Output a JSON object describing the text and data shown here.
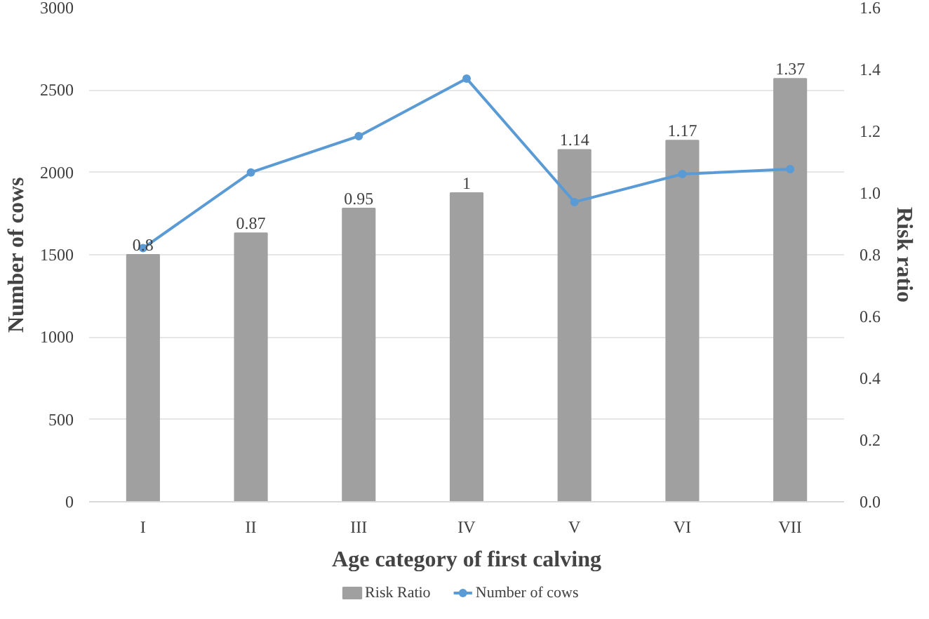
{
  "chart_data": {
    "type": "bar",
    "xlabel": "Age category of first calving",
    "ylabel": "Number of cows",
    "y2label": "Risk ratio",
    "categories": [
      "I",
      "II",
      "III",
      "IV",
      "V",
      "VI",
      "VII"
    ],
    "series": [
      {
        "name": "Risk Ratio",
        "axis": "y2",
        "color": "#a0a0a0",
        "values": [
          0.8,
          0.87,
          0.95,
          1,
          1.14,
          1.17,
          1.37
        ],
        "data_labels": true
      },
      {
        "name": "Number of cows",
        "type": "line",
        "color": "#5b9bd5",
        "marker": "circle",
        "values": [
          1540,
          2000,
          2220,
          2570,
          1820,
          1990,
          2020
        ]
      }
    ],
    "ylim": [
      0,
      3000
    ],
    "yticks": [
      0,
      500,
      1000,
      1500,
      2000,
      2500,
      3000
    ],
    "y2lim": [
      0,
      1.6
    ],
    "y2ticks": [
      {
        "value": 0,
        "label": "0.0"
      },
      {
        "value": 0.2,
        "label": "0.2"
      },
      {
        "value": 0.4,
        "label": "0.4"
      },
      {
        "value": 0.6,
        "label": "0.6"
      },
      {
        "value": 0.8,
        "label": "0.8"
      },
      {
        "value": 1.0,
        "label": "1.0"
      },
      {
        "value": 1.2,
        "label": "1.2"
      },
      {
        "value": 1.4,
        "label": "1.4"
      },
      {
        "value": 1.6,
        "label": "1.6"
      }
    ],
    "grid": "y",
    "legend": "bottom"
  }
}
